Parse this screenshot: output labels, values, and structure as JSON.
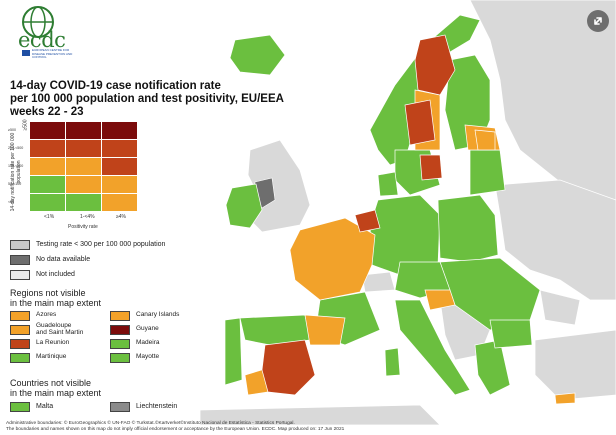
{
  "logo": {
    "text": "ecdc",
    "subtitle": "EUROPEAN CENTRE FOR DISEASE PREVENTION AND CONTROL"
  },
  "title": [
    "14-day COVID-19 case notification rate",
    "per 100 000 population and test positivity, EU/EEA",
    "weeks 22 - 23"
  ],
  "matrix": {
    "rows": [
      [
        "#7b0b0b",
        "#7b0b0b",
        "#7b0b0b"
      ],
      [
        "#c0431a",
        "#c0431a",
        "#c0431a"
      ],
      [
        "#f2a22a",
        "#f2a22a",
        "#c0431a"
      ],
      [
        "#6bbf3f",
        "#f2a22a",
        "#f2a22a"
      ],
      [
        "#6bbf3f",
        "#6bbf3f",
        "#f2a22a"
      ]
    ],
    "x_ticks": [
      "<1%",
      "1-<4%",
      "≥4%"
    ],
    "x_label": "Positivity rate",
    "y_ticks": [
      "≥500",
      "200-<500",
      "100-<200",
      "50-<100",
      "<50"
    ],
    "y_label": "14-day notification rate per 100 000 population"
  },
  "legend": {
    "testing_rate": "Testing rate < 300 per 100 000 population",
    "no_data": "No data available",
    "not_included": "Not included"
  },
  "regions_heading": "Regions not visible\nin the main map extent",
  "regions": [
    {
      "label": "Azores",
      "color": "#f2a22a"
    },
    {
      "label": "Canary Islands",
      "color": "#f2a22a"
    },
    {
      "label": "Guadeloupe\nand Saint Martin",
      "color": "#f2a22a"
    },
    {
      "label": "Guyane",
      "color": "#7b0b0b"
    },
    {
      "label": "La Reunion",
      "color": "#c0431a"
    },
    {
      "label": "Madeira",
      "color": "#6bbf3f"
    },
    {
      "label": "Martinique",
      "color": "#6bbf3f"
    },
    {
      "label": "Mayotte",
      "color": "#6bbf3f"
    }
  ],
  "countries_heading": "Countries not visible\nin the main map extent",
  "countries": [
    {
      "label": "Malta",
      "color": "#6bbf3f"
    },
    {
      "label": "Liechtenstein",
      "color": "#8a8a8a"
    }
  ],
  "footer": [
    "Administrative boundaries: © EuroGeographics © UN-FAO © Turkstat.©Kartverket©Instituto Nacional de Estatística - Statistics Portugal.",
    "The boundaries and names shown on this map do not imply official endorsement or acceptance by the European Union. ECDC. Map produced on: 17 Jun 2021"
  ],
  "colors": {
    "green": "#6bbf3f",
    "orange": "#f2a22a",
    "red": "#c0431a",
    "darkred": "#7b0b0b",
    "grey_nodata": "#8a8a8a",
    "grey_excluded": "#d9d9d9",
    "sea": "#ffffff"
  },
  "expand_icon": "expand-icon"
}
